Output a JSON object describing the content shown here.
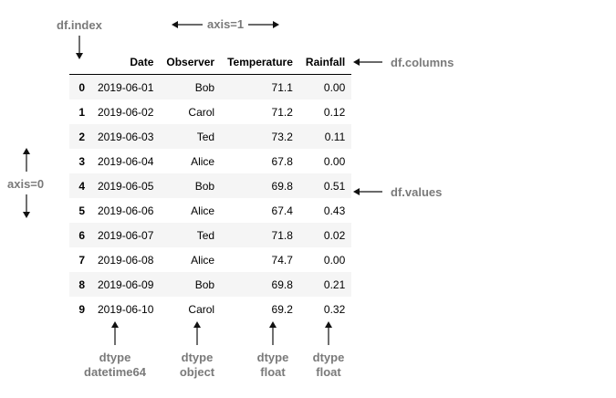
{
  "annotations": {
    "df_index": "df.index",
    "axis1": "axis=1",
    "df_columns": "df.columns",
    "df_values": "df.values",
    "axis0": "axis=0"
  },
  "table": {
    "columns": [
      "",
      "Date",
      "Observer",
      "Temperature",
      "Rainfall"
    ],
    "rows": [
      [
        "0",
        "2019-06-01",
        "Bob",
        "71.1",
        "0.00"
      ],
      [
        "1",
        "2019-06-02",
        "Carol",
        "71.2",
        "0.12"
      ],
      [
        "2",
        "2019-06-03",
        "Ted",
        "73.2",
        "0.11"
      ],
      [
        "3",
        "2019-06-04",
        "Alice",
        "67.8",
        "0.00"
      ],
      [
        "4",
        "2019-06-05",
        "Bob",
        "69.8",
        "0.51"
      ],
      [
        "5",
        "2019-06-06",
        "Alice",
        "67.4",
        "0.43"
      ],
      [
        "6",
        "2019-06-07",
        "Ted",
        "71.8",
        "0.02"
      ],
      [
        "7",
        "2019-06-08",
        "Alice",
        "74.7",
        "0.00"
      ],
      [
        "8",
        "2019-06-09",
        "Bob",
        "69.8",
        "0.21"
      ],
      [
        "9",
        "2019-06-10",
        "Carol",
        "69.2",
        "0.32"
      ]
    ]
  },
  "dtypes": [
    {
      "label": "dtype",
      "type": "datetime64"
    },
    {
      "label": "dtype",
      "type": "object"
    },
    {
      "label": "dtype",
      "type": "float"
    },
    {
      "label": "dtype",
      "type": "float"
    }
  ],
  "colors": {
    "annotation_text": "#7a7a7a",
    "arrow": "#111111",
    "row_stripe": "#f5f5f5"
  }
}
